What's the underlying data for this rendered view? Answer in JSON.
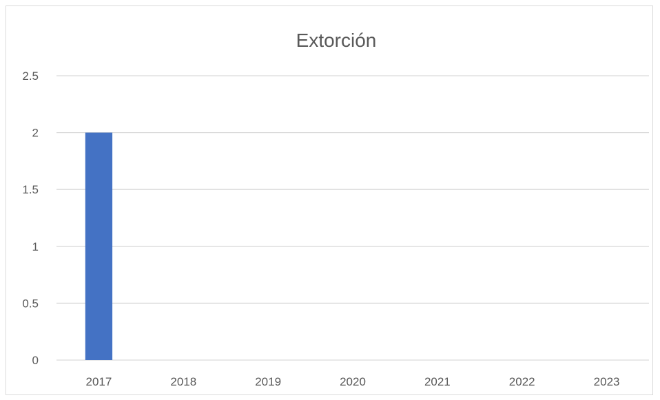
{
  "chart_data": {
    "type": "bar",
    "title": "Extorción",
    "xlabel": "",
    "ylabel": "",
    "categories": [
      "2017",
      "2018",
      "2019",
      "2020",
      "2021",
      "2022",
      "2023"
    ],
    "values": [
      2,
      0,
      0,
      0,
      0,
      0,
      0
    ],
    "ylim": [
      0,
      2.5
    ],
    "yticks": [
      "0",
      "0.5",
      "1",
      "1.5",
      "2",
      "2.5"
    ],
    "grid": true,
    "legend": "none",
    "colors": {
      "bar": "#4472c4",
      "grid": "#d9d9d9",
      "text": "#595959"
    }
  }
}
